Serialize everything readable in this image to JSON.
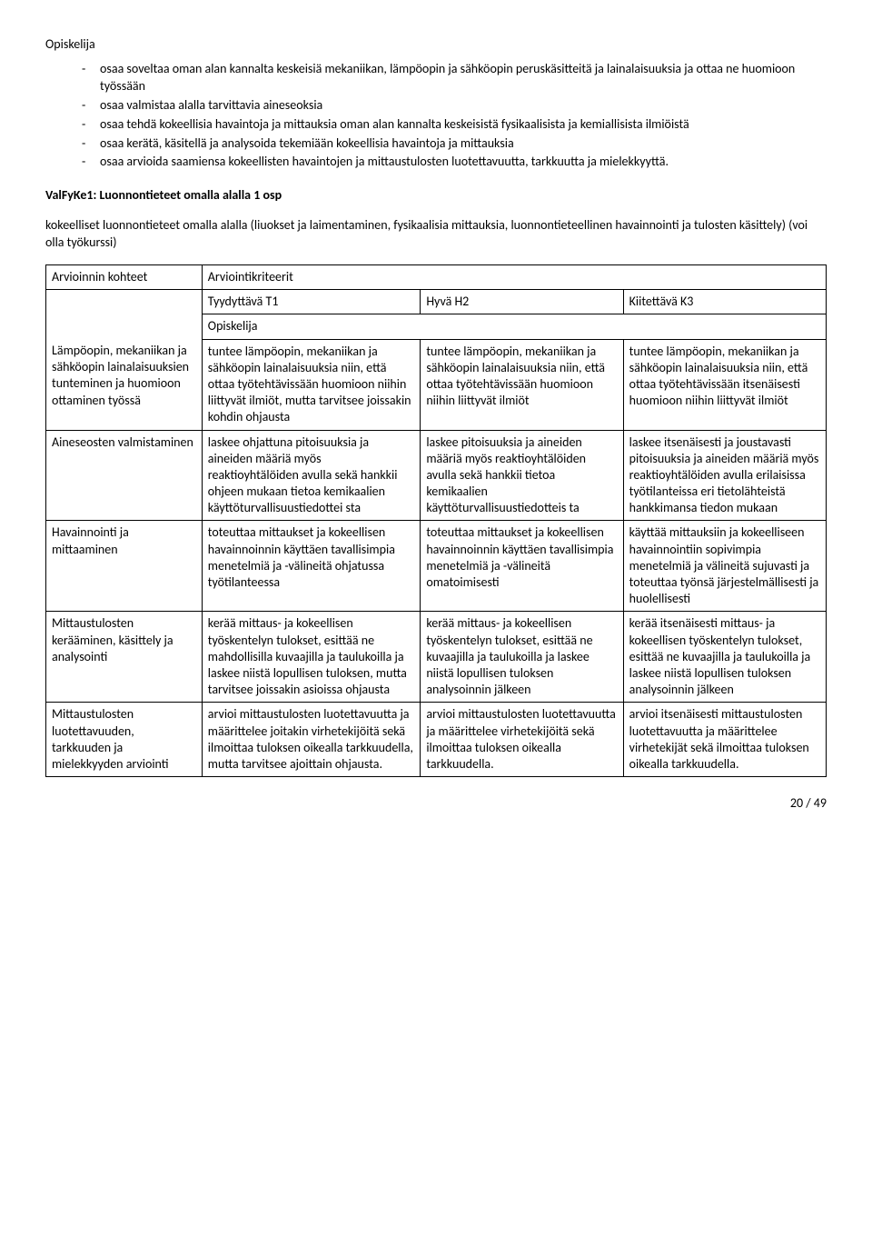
{
  "top_heading": "Opiskelija",
  "top_bullets": [
    "osaa soveltaa oman alan kannalta keskeisiä mekaniikan, lämpöopin ja sähköopin peruskäsitteitä ja lainalaisuuksia ja ottaa ne huomioon työssään",
    "osaa valmistaa alalla tarvittavia aineseoksia",
    "osaa tehdä kokeellisia havaintoja ja mittauksia oman alan kannalta keskeisistä fysikaalisista ja kemiallisista ilmiöistä",
    "osaa kerätä, käsitellä ja analysoida tekemiään kokeellisia havaintoja ja mittauksia",
    "osaa arvioida saamiensa kokeellisten havaintojen ja mittaustulosten luotettavuutta, tarkkuutta ja mielekkyyttä."
  ],
  "section_title": "ValFyKe1:  Luonnontieteet omalla alalla  1 osp",
  "section_para": "kokeelliset luonnontieteet omalla alalla (liuokset ja laimentaminen, fysikaalisia mittauksia, luonnontieteellinen havainnointi ja tulosten käsittely) (voi olla työkurssi)",
  "table": {
    "row0": {
      "c1": "Arvioinnin kohteet",
      "c2": "Arviointikriteerit"
    },
    "row1": {
      "c2": "Tyydyttävä T1",
      "c3": "Hyvä H2",
      "c4": "Kiitettävä K3"
    },
    "row2": {
      "c2": "Opiskelija"
    },
    "rows": [
      {
        "c1": "Lämpöopin, mekaniikan ja sähköopin lainalaisuuksien tunteminen ja huomioon ottaminen työssä",
        "c2": "tuntee lämpöopin, mekaniikan ja sähköopin lainalaisuuksia niin, että ottaa työtehtävissään huomioon niihin liittyvät ilmiöt, mutta tarvitsee joissakin kohdin ohjausta",
        "c3": "tuntee lämpöopin, mekaniikan ja sähköopin lainalaisuuksia niin, että ottaa työtehtävissään huomioon niihin liittyvät ilmiöt",
        "c4": "tuntee lämpöopin, mekaniikan ja sähköopin lainalaisuuksia niin, että ottaa työtehtävissään itsenäisesti huomioon niihin liittyvät ilmiöt"
      },
      {
        "c1": "Aineseosten valmistaminen",
        "c2": "laskee ohjattuna pitoisuuksia ja aineiden määriä myös reaktioyhtälöiden avulla sekä hankkii ohjeen mukaan tietoa kemikaalien käyttöturvallisuustiedottei sta",
        "c3": "laskee pitoisuuksia ja aineiden määriä myös reaktioyhtälöiden avulla sekä hankkii tietoa kemikaalien käyttöturvallisuustiedotteis ta",
        "c4": "laskee itsenäisesti ja joustavasti pitoisuuksia ja aineiden määriä myös reaktioyhtälöiden avulla erilaisissa työtilanteissa eri tietolähteistä hankkimansa tiedon mukaan"
      },
      {
        "c1": "Havainnointi ja mittaaminen",
        "c2": "toteuttaa mittaukset ja kokeellisen havainnoinnin käyttäen tavallisimpia menetelmiä ja -välineitä ohjatussa työtilanteessa",
        "c3": "toteuttaa mittaukset ja kokeellisen havainnoinnin käyttäen tavallisimpia menetelmiä ja -välineitä omatoimisesti",
        "c4": "käyttää mittauksiin ja kokeelliseen havainnointiin sopivimpia menetelmiä ja välineitä sujuvasti ja toteuttaa työnsä järjestelmällisesti ja huolellisesti"
      },
      {
        "c1": "Mittaustulosten kerääminen, käsittely ja analysointi",
        "c2": "kerää mittaus- ja kokeellisen työskentelyn tulokset, esittää ne mahdollisilla kuvaajilla ja taulukoilla ja laskee niistä lopullisen tuloksen, mutta tarvitsee joissakin asioissa ohjausta",
        "c3": "kerää mittaus- ja kokeellisen työskentelyn tulokset, esittää ne kuvaajilla ja taulukoilla ja laskee niistä lopullisen tuloksen analysoinnin jälkeen",
        "c4": "kerää itsenäisesti mittaus- ja kokeellisen työskentelyn tulokset, esittää ne kuvaajilla ja taulukoilla ja laskee niistä lopullisen tuloksen analysoinnin jälkeen"
      },
      {
        "c1": "Mittaustulosten luotettavuuden, tarkkuuden ja mielekkyyden arviointi",
        "c2": "arvioi mittaustulosten luotettavuutta ja määrittelee joitakin virhetekijöitä sekä ilmoittaa tuloksen oikealla tarkkuudella, mutta tarvitsee ajoittain ohjausta.",
        "c3": "arvioi mittaustulosten luotettavuutta ja määrittelee virhetekijöitä sekä ilmoittaa tuloksen oikealla tarkkuudella.",
        "c4": "arvioi itsenäisesti mittaustulosten luotettavuutta ja määrittelee virhetekijät sekä ilmoittaa tuloksen oikealla tarkkuudella."
      }
    ]
  },
  "page_number": "20 / 49"
}
